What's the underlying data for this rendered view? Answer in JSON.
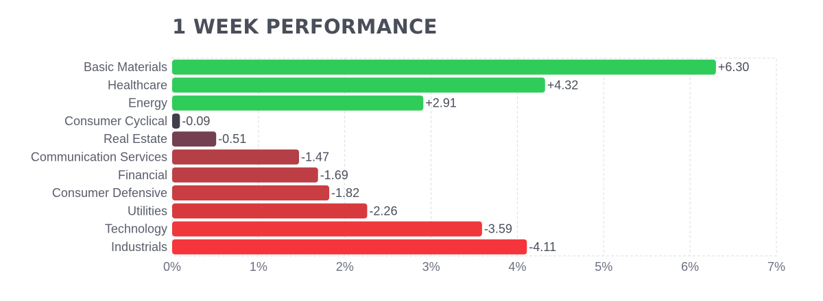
{
  "chart_data": {
    "type": "bar",
    "orientation": "horizontal",
    "title": "1 WEEK PERFORMANCE",
    "categories": [
      "Basic Materials",
      "Healthcare",
      "Energy",
      "Consumer Cyclical",
      "Real Estate",
      "Communication Services",
      "Financial",
      "Consumer Defensive",
      "Utilities",
      "Technology",
      "Industrials"
    ],
    "values": [
      6.3,
      4.32,
      2.91,
      -0.09,
      -0.51,
      -1.47,
      -1.69,
      -1.82,
      -2.26,
      -3.59,
      -4.11
    ],
    "value_labels": [
      "+6.30",
      "+4.32",
      "+2.91",
      "-0.09",
      "-0.51",
      "-1.47",
      "-1.69",
      "-1.82",
      "-2.26",
      "-3.59",
      "-4.11"
    ],
    "bar_colors": [
      "#30cc5a",
      "#30cc5a",
      "#30cc5a",
      "#413d4c",
      "#733f51",
      "#b43f46",
      "#bd3f45",
      "#c93d43",
      "#d8393d",
      "#ef373c",
      "#f5353b"
    ],
    "x_ticks": [
      "0%",
      "1%",
      "2%",
      "3%",
      "4%",
      "5%",
      "6%",
      "7%"
    ],
    "xlim": [
      0,
      7
    ],
    "bar_length": "absolute value",
    "grid": true
  }
}
